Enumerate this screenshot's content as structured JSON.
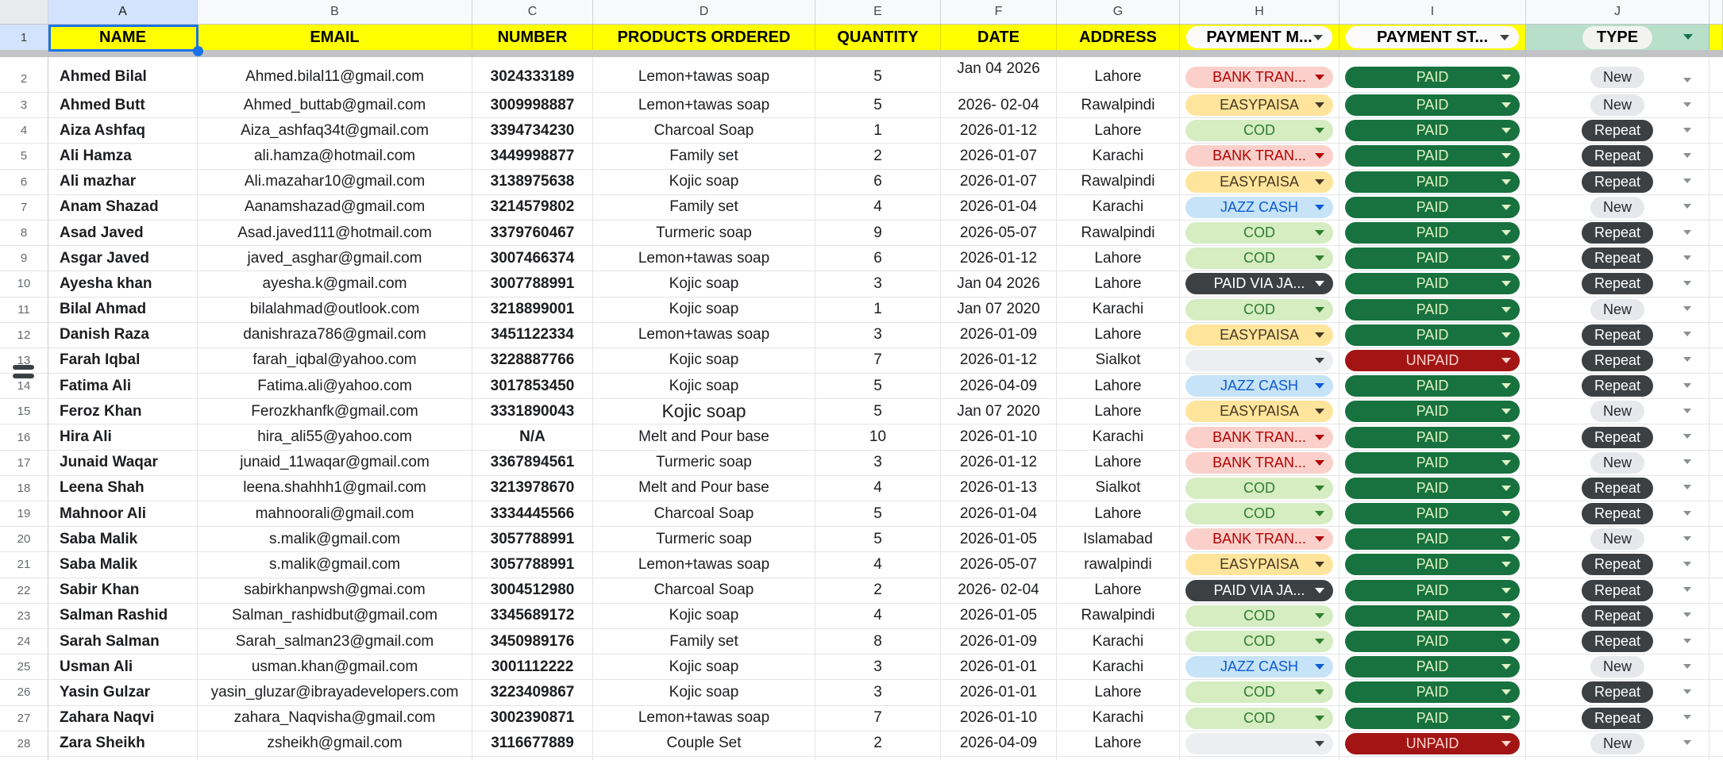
{
  "sheet": {
    "selected_cell": "A1",
    "selected_row_label": "1",
    "column_letters": [
      "A",
      "B",
      "C",
      "D",
      "E",
      "F",
      "G",
      "H",
      "I",
      "J"
    ],
    "header": {
      "name": "NAME",
      "email": "EMAIL",
      "number": "NUMBER",
      "products": "PRODUCTS ORDERED",
      "quantity": "QUANTITY",
      "date": "DATE",
      "address": "ADDRESS",
      "payment_method": "PAYMENT M...",
      "payment_status": "PAYMENT ST...",
      "type": "TYPE"
    }
  },
  "colors": {
    "header_yellow": "#ffff00",
    "type_header_green": "#b7dfc9",
    "selected_header_blue": "#d3e3fd",
    "selection_blue": "#1a73e8",
    "freeze_divider_gray": "#c1c3c6"
  },
  "chip_styles": {
    "bank": {
      "label": "BANK TRAN...",
      "bg": "#fbd0cb",
      "fg": "#b10202"
    },
    "easypaisa": {
      "label": "EASYPAISA",
      "bg": "#ffe49c",
      "fg": "#473821"
    },
    "cod": {
      "label": "COD",
      "bg": "#d5edc1",
      "fg": "#2f7d32"
    },
    "jazz": {
      "label": "JAZZ CASH",
      "bg": "#c6e3f8",
      "fg": "#0f5bd0"
    },
    "paidvia": {
      "label": "PAID VIA JA...",
      "bg": "#3d4043",
      "fg": "#ffffff"
    },
    "empty": {
      "label": "",
      "bg": "#eceef1",
      "fg": "#3c4043"
    }
  },
  "status_styles": {
    "paid": {
      "label": "PAID",
      "bg": "#17723f",
      "fg": "#e0f2c5"
    },
    "unpaid": {
      "label": "UNPAID",
      "bg": "#a31515",
      "fg": "#ffd4ce"
    }
  },
  "type_styles": {
    "new": {
      "label": "New",
      "bg": "#e7e8ec",
      "fg": "#24292e"
    },
    "repeat": {
      "label": "Repeat",
      "bg": "#3c4043",
      "fg": "#ffffff"
    }
  },
  "rows": [
    {
      "n": 2,
      "name": "Ahmed Bilal",
      "email": "Ahmed.bilal11@gmail.com",
      "number": "3024333189",
      "product": "Lemon+tawas soap",
      "qty": "5",
      "date": "Jan 04 2026",
      "address": "Lahore",
      "method": "bank",
      "status": "paid",
      "type": "new"
    },
    {
      "n": 3,
      "name": "Ahmed Butt",
      "email": "Ahmed_buttab@gmail.com",
      "number": "3009998887",
      "product": "Lemon+tawas soap",
      "qty": "5",
      "date": "2026- 02-04",
      "address": "Rawalpindi",
      "method": "easypaisa",
      "status": "paid",
      "type": "new"
    },
    {
      "n": 4,
      "name": "Aiza Ashfaq",
      "email": "Aiza_ashfaq34t@gmail.com",
      "number": "3394734230",
      "product": "Charcoal Soap",
      "qty": "1",
      "date": "2026-01-12",
      "address": "Lahore",
      "method": "cod",
      "status": "paid",
      "type": "repeat"
    },
    {
      "n": 5,
      "name": "Ali Hamza",
      "email": "ali.hamza@hotmail.com",
      "number": "3449998877",
      "product": "Family set",
      "qty": "2",
      "date": "2026-01-07",
      "address": "Karachi",
      "method": "bank",
      "status": "paid",
      "type": "repeat"
    },
    {
      "n": 6,
      "name": "Ali mazhar",
      "email": "Ali.mazahar10@gmail.com",
      "number": "3138975638",
      "product": "Kojic soap",
      "qty": "6",
      "date": "2026-01-07",
      "address": "Rawalpindi",
      "method": "easypaisa",
      "status": "paid",
      "type": "repeat"
    },
    {
      "n": 7,
      "name": "Anam Shazad",
      "email": "Aanamshazad@gmail.com",
      "number": "3214579802",
      "product": "Family set",
      "qty": "4",
      "date": "2026-01-04",
      "address": "Karachi",
      "method": "jazz",
      "status": "paid",
      "type": "new"
    },
    {
      "n": 8,
      "name": "Asad Javed",
      "email": "Asad.javed111@hotmail.com",
      "number": "3379760467",
      "product": "Turmeric soap",
      "qty": "9",
      "date": "2026-05-07",
      "address": "Rawalpindi",
      "method": "cod",
      "status": "paid",
      "type": "repeat"
    },
    {
      "n": 9,
      "name": "Asgar Javed",
      "email": "javed_asghar@gmail.com",
      "number": "3007466374",
      "product": "Lemon+tawas soap",
      "qty": "6",
      "date": "2026-01-12",
      "address": "Lahore",
      "method": "cod",
      "status": "paid",
      "type": "repeat"
    },
    {
      "n": 10,
      "name": "Ayesha khan",
      "email": "ayesha.k@gmail.com",
      "number": "3007788991",
      "product": "Kojic soap",
      "qty": "3",
      "date": "Jan 04 2026",
      "address": "Lahore",
      "method": "paidvia",
      "status": "paid",
      "type": "repeat"
    },
    {
      "n": 11,
      "name": "Bilal Ahmad",
      "email": "bilalahmad@outlook.com",
      "number": "3218899001",
      "product": "Kojic soap",
      "qty": "1",
      "date": "Jan 07 2020",
      "address": "Karachi",
      "method": "cod",
      "status": "paid",
      "type": "new"
    },
    {
      "n": 12,
      "name": "Danish Raza",
      "email": "danishraza786@gmail.com",
      "number": "3451122334",
      "product": "Lemon+tawas soap",
      "qty": "3",
      "date": "2026-01-09",
      "address": "Lahore",
      "method": "easypaisa",
      "status": "paid",
      "type": "repeat"
    },
    {
      "n": 13,
      "name": "Farah Iqbal",
      "email": "farah_iqbal@yahoo.com",
      "number": "3228887766",
      "product": "Kojic soap",
      "qty": "7",
      "date": "2026-01-12",
      "address": "Sialkot",
      "method": "empty",
      "status": "unpaid",
      "type": "repeat"
    },
    {
      "n": 14,
      "name": "Fatima Ali",
      "email": "Fatima.ali@yahoo.com",
      "number": "3017853450",
      "product": "Kojic soap",
      "qty": "5",
      "date": "2026-04-09",
      "address": "Lahore",
      "method": "jazz",
      "status": "paid",
      "type": "repeat"
    },
    {
      "n": 15,
      "name": "Feroz Khan",
      "email": "Ferozkhanfk@gmail.com",
      "number": "3331890043",
      "product": "Kojic soap",
      "qty": "5",
      "date": "Jan 07 2020",
      "address": "Lahore",
      "method": "easypaisa",
      "status": "paid",
      "type": "new",
      "product_large": true
    },
    {
      "n": 16,
      "name": "Hira Ali",
      "email": "hira_ali55@yahoo.com",
      "number": "N/A",
      "product": "Melt and Pour base",
      "qty": "10",
      "date": "2026-01-10",
      "address": "Karachi",
      "method": "bank",
      "status": "paid",
      "type": "repeat"
    },
    {
      "n": 17,
      "name": "Junaid Waqar",
      "email": "junaid_11waqar@gmail.com",
      "number": "3367894561",
      "product": "Turmeric soap",
      "qty": "3",
      "date": "2026-01-12",
      "address": "Lahore",
      "method": "bank",
      "status": "paid",
      "type": "new"
    },
    {
      "n": 18,
      "name": "Leena Shah",
      "email": "leena.shahhh1@gmail.com",
      "number": "3213978670",
      "product": "Melt and Pour base",
      "qty": "4",
      "date": "2026-01-13",
      "address": "Sialkot",
      "method": "cod",
      "status": "paid",
      "type": "repeat"
    },
    {
      "n": 19,
      "name": "Mahnoor Ali",
      "email": "mahnoorali@gmail.com",
      "number": "3334445566",
      "product": "Charcoal Soap",
      "qty": "5",
      "date": "2026-01-04",
      "address": "Lahore",
      "method": "cod",
      "status": "paid",
      "type": "repeat"
    },
    {
      "n": 20,
      "name": "Saba Malik",
      "email": "s.malik@gmail.com",
      "number": "3057788991",
      "product": "Turmeric soap",
      "qty": "5",
      "date": "2026-01-05",
      "address": "Islamabad",
      "method": "bank",
      "status": "paid",
      "type": "new"
    },
    {
      "n": 21,
      "name": "Saba Malik",
      "email": "s.malik@gmail.com",
      "number": "3057788991",
      "product": "Lemon+tawas soap",
      "qty": "4",
      "date": "2026-05-07",
      "address": "rawalpindi",
      "method": "easypaisa",
      "status": "paid",
      "type": "repeat"
    },
    {
      "n": 22,
      "name": "Sabir Khan",
      "email": "sabirkhanpwsh@gmai.com",
      "number": "3004512980",
      "product": "Charcoal Soap",
      "qty": "2",
      "date": "2026- 02-04",
      "address": "Lahore",
      "method": "paidvia",
      "status": "paid",
      "type": "repeat"
    },
    {
      "n": 23,
      "name": "Salman Rashid",
      "email": "Salman_rashidbut@gmail.com",
      "number": "3345689172",
      "product": "Kojic soap",
      "qty": "4",
      "date": "2026-01-05",
      "address": "Rawalpindi",
      "method": "cod",
      "status": "paid",
      "type": "repeat"
    },
    {
      "n": 24,
      "name": "Sarah Salman",
      "email": "Sarah_salman23@gmail.com",
      "number": "3450989176",
      "product": "Family set",
      "qty": "8",
      "date": "2026-01-09",
      "address": "Karachi",
      "method": "cod",
      "status": "paid",
      "type": "repeat"
    },
    {
      "n": 25,
      "name": "Usman Ali",
      "email": "usman.khan@gmail.com",
      "number": "3001112222",
      "product": "Kojic soap",
      "qty": "3",
      "date": "2026-01-01",
      "address": "Karachi",
      "method": "jazz",
      "status": "paid",
      "type": "new"
    },
    {
      "n": 26,
      "name": "Yasin Gulzar",
      "email": "yasin_gluzar@ibrayadevelopers.com",
      "number": "3223409867",
      "product": "Kojic soap",
      "qty": "3",
      "date": "2026-01-01",
      "address": "Lahore",
      "method": "cod",
      "status": "paid",
      "type": "repeat"
    },
    {
      "n": 27,
      "name": "Zahara Naqvi",
      "email": "zahara_Naqvisha@gmail.com",
      "number": "3002390871",
      "product": "Lemon+tawas soap",
      "qty": "7",
      "date": "2026-01-10",
      "address": "Karachi",
      "method": "cod",
      "status": "paid",
      "type": "repeat"
    },
    {
      "n": 28,
      "name": "Zara Sheikh",
      "email": "zsheikh@gmail.com",
      "number": "3116677889",
      "product": "Couple Set",
      "qty": "2",
      "date": "2026-04-09",
      "address": "Lahore",
      "method": "empty",
      "status": "unpaid",
      "type": "new"
    }
  ]
}
